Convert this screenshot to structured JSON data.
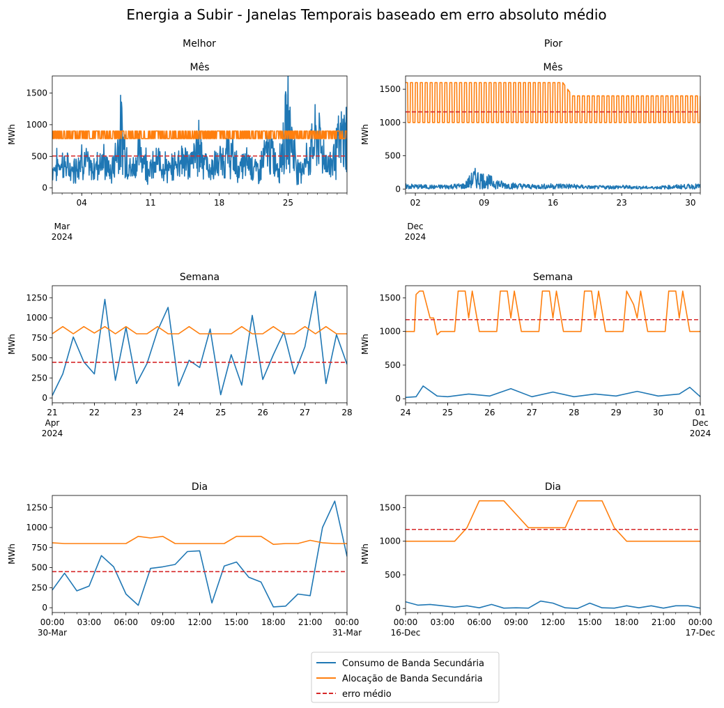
{
  "figure": {
    "title": "Energia a Subir - Janelas Temporais baseado em erro absoluto médio",
    "columns": [
      "Melhor",
      "Pior"
    ]
  },
  "legend": {
    "placement": "bottom-center",
    "items": [
      {
        "label": "Consumo de Banda Secundária",
        "color": "#1f77b4",
        "style": "solid"
      },
      {
        "label": "Alocação de Banda Secundária",
        "color": "#ff7f0e",
        "style": "solid"
      },
      {
        "label": "erro médio",
        "color": "#d62728",
        "style": "dashed"
      }
    ]
  },
  "chart_data": [
    {
      "type": "line",
      "panel": "Melhor",
      "title": "Mês",
      "ylabel": "MWh",
      "xlabel": "",
      "ylim": [
        -80,
        1770
      ],
      "yticks": [
        0,
        500,
        1000,
        1500
      ],
      "grid": false,
      "x_range": [
        "2024-03-01",
        "2024-03-31"
      ],
      "xticks": [
        "04",
        "11",
        "18",
        "25"
      ],
      "xtick_sub": [
        "Mar",
        "2024"
      ],
      "series": [
        {
          "name": "Consumo de Banda Secundária",
          "color": "#1f77b4",
          "x": [
            "2024-03-01",
            "2024-03-02",
            "2024-03-03",
            "2024-03-04",
            "2024-03-05",
            "2024-03-06",
            "2024-03-07",
            "2024-03-08",
            "2024-03-09",
            "2024-03-10",
            "2024-03-11",
            "2024-03-12",
            "2024-03-13",
            "2024-03-14",
            "2024-03-15",
            "2024-03-16",
            "2024-03-17",
            "2024-03-18",
            "2024-03-19",
            "2024-03-20",
            "2024-03-21",
            "2024-03-22",
            "2024-03-23",
            "2024-03-24",
            "2024-03-25",
            "2024-03-26",
            "2024-03-27",
            "2024-03-28",
            "2024-03-29",
            "2024-03-30",
            "2024-03-31"
          ],
          "values": [
            320,
            510,
            230,
            700,
            260,
            610,
            180,
            1340,
            240,
            820,
            300,
            560,
            220,
            690,
            410,
            970,
            260,
            480,
            780,
            300,
            520,
            240,
            880,
            360,
            1680,
            280,
            590,
            1260,
            360,
            900,
            1320
          ]
        },
        {
          "name": "Alocação de Banda Secundária",
          "color": "#ff7f0e",
          "x": [
            "2024-03-01",
            "2024-03-31"
          ],
          "values": [
            810,
            810
          ],
          "band": [
            780,
            900
          ]
        }
      ],
      "erro_medio": 505
    },
    {
      "type": "line",
      "panel": "Pior",
      "title": "Mês",
      "ylabel": "MWh",
      "xlabel": "",
      "ylim": [
        -60,
        1700
      ],
      "yticks": [
        0,
        500,
        1000,
        1500
      ],
      "grid": false,
      "x_range": [
        "2024-12-01",
        "2024-12-31"
      ],
      "xticks": [
        "02",
        "09",
        "16",
        "23",
        "30"
      ],
      "xtick_sub": [
        "Dec",
        "2024"
      ],
      "series": [
        {
          "name": "Consumo de Banda Secundária",
          "color": "#1f77b4",
          "x": [
            "2024-12-01",
            "2024-12-04",
            "2024-12-07",
            "2024-12-08",
            "2024-12-11",
            "2024-12-14",
            "2024-12-17",
            "2024-12-20",
            "2024-12-23",
            "2024-12-26",
            "2024-12-29",
            "2024-12-31"
          ],
          "values": [
            80,
            60,
            90,
            320,
            110,
            70,
            90,
            50,
            60,
            40,
            70,
            80
          ]
        },
        {
          "name": "Alocação de Banda Secundária",
          "color": "#ff7f0e",
          "x": [
            "2024-12-01",
            "2024-12-17",
            "2024-12-18",
            "2024-12-31"
          ],
          "values": [
            1600,
            1600,
            1400,
            1400
          ],
          "low": 1000
        }
      ],
      "erro_medio": 1160
    },
    {
      "type": "line",
      "panel": "Melhor",
      "title": "Semana",
      "ylabel": "MWh",
      "xlabel": "",
      "ylim": [
        -60,
        1400
      ],
      "yticks": [
        0,
        250,
        500,
        750,
        1000,
        1250
      ],
      "grid": false,
      "x_range": [
        "2024-04-21",
        "2024-04-28"
      ],
      "xticks": [
        "21",
        "22",
        "23",
        "24",
        "25",
        "26",
        "27",
        "28"
      ],
      "xtick_sub": [
        "Apr",
        "2024"
      ],
      "series": [
        {
          "name": "Consumo de Banda Secundária",
          "color": "#1f77b4",
          "x": [
            "21 00:00",
            "21 06:00",
            "21 12:00",
            "21 18:00",
            "22 00:00",
            "22 06:00",
            "22 12:00",
            "22 18:00",
            "23 00:00",
            "23 06:00",
            "23 12:00",
            "23 18:00",
            "24 00:00",
            "24 06:00",
            "24 12:00",
            "24 18:00",
            "25 00:00",
            "25 06:00",
            "25 12:00",
            "25 18:00",
            "26 00:00",
            "26 06:00",
            "26 12:00",
            "26 18:00",
            "27 00:00",
            "27 06:00",
            "27 12:00",
            "27 18:00",
            "28 00:00"
          ],
          "values": [
            30,
            300,
            760,
            450,
            300,
            1230,
            220,
            880,
            180,
            430,
            840,
            1130,
            150,
            470,
            380,
            860,
            40,
            540,
            160,
            1030,
            230,
            540,
            820,
            300,
            640,
            1330,
            180,
            790,
            420
          ]
        },
        {
          "name": "Alocação de Banda Secundária",
          "color": "#ff7f0e",
          "x": [
            "21 00:00",
            "21 06:00",
            "21 12:00",
            "21 18:00",
            "22 00:00",
            "22 06:00",
            "22 12:00",
            "22 18:00",
            "23 00:00",
            "23 06:00",
            "23 12:00",
            "23 18:00",
            "24 00:00",
            "24 06:00",
            "24 12:00",
            "24 18:00",
            "25 00:00",
            "25 06:00",
            "25 12:00",
            "25 18:00",
            "26 00:00",
            "26 06:00",
            "26 12:00",
            "26 18:00",
            "27 00:00",
            "27 06:00",
            "27 12:00",
            "27 18:00",
            "28 00:00"
          ],
          "values": [
            800,
            890,
            800,
            890,
            810,
            890,
            800,
            890,
            800,
            800,
            890,
            800,
            800,
            890,
            800,
            800,
            800,
            800,
            890,
            800,
            800,
            890,
            800,
            800,
            890,
            800,
            890,
            800,
            800
          ]
        }
      ],
      "erro_medio": 445
    },
    {
      "type": "line",
      "panel": "Pior",
      "title": "Semana",
      "ylabel": "MWh",
      "xlabel": "",
      "ylim": [
        -60,
        1680
      ],
      "yticks": [
        0,
        500,
        1000,
        1500
      ],
      "grid": false,
      "x_range": [
        "2024-11-24",
        "2024-12-01"
      ],
      "xticks": [
        "24",
        "25",
        "26",
        "27",
        "28",
        "29",
        "30",
        "01"
      ],
      "xtick_sub_last": [
        "Dec",
        "2024"
      ],
      "series": [
        {
          "name": "Consumo de Banda Secundária",
          "color": "#1f77b4",
          "x": [
            "24 00:00",
            "24 06:00",
            "24 10:00",
            "24 18:00",
            "25 00:00",
            "25 12:00",
            "26 00:00",
            "26 12:00",
            "27 00:00",
            "27 12:00",
            "28 00:00",
            "28 12:00",
            "29 00:00",
            "29 12:00",
            "30 00:00",
            "30 12:00",
            "30 18:00",
            "01 00:00"
          ],
          "values": [
            20,
            30,
            190,
            40,
            30,
            70,
            40,
            150,
            30,
            100,
            30,
            70,
            40,
            110,
            40,
            70,
            170,
            30
          ]
        },
        {
          "name": "Alocação de Banda Secundária",
          "color": "#ff7f0e",
          "x": [
            "24 00:00",
            "24 05:00",
            "24 06:00",
            "24 08:00",
            "24 10:00",
            "24 14:00",
            "24 16:00",
            "24 18:00",
            "24 20:00",
            "25 00:00",
            "25 04:00",
            "25 06:00",
            "25 10:00",
            "25 12:00",
            "25 14:00",
            "25 18:00",
            "26 00:00",
            "26 04:00",
            "26 06:00",
            "26 10:00",
            "26 12:00",
            "26 14:00",
            "26 18:00",
            "27 00:00",
            "27 04:00",
            "27 06:00",
            "27 10:00",
            "27 12:00",
            "27 14:00",
            "27 18:00",
            "28 00:00",
            "28 04:00",
            "28 06:00",
            "28 10:00",
            "28 12:00",
            "28 14:00",
            "28 18:00",
            "29 00:00",
            "29 04:00",
            "29 06:00",
            "29 10:00",
            "29 12:00",
            "29 14:00",
            "29 18:00",
            "30 00:00",
            "30 04:00",
            "30 06:00",
            "30 10:00",
            "30 12:00",
            "30 14:00",
            "30 18:00",
            "01 00:00"
          ],
          "values": [
            1000,
            1000,
            1550,
            1600,
            1600,
            1200,
            1200,
            950,
            1000,
            1000,
            1000,
            1600,
            1600,
            1200,
            1600,
            1000,
            1000,
            1000,
            1600,
            1600,
            1200,
            1600,
            1000,
            1000,
            1000,
            1600,
            1600,
            1200,
            1600,
            1000,
            1000,
            1000,
            1600,
            1600,
            1200,
            1600,
            1000,
            1000,
            1000,
            1600,
            1400,
            1200,
            1600,
            1000,
            1000,
            1000,
            1600,
            1600,
            1200,
            1600,
            1000,
            1000
          ]
        }
      ],
      "erro_medio": 1175
    },
    {
      "type": "line",
      "panel": "Melhor",
      "title": "Dia",
      "ylabel": "MWh",
      "xlabel": "",
      "ylim": [
        -60,
        1400
      ],
      "yticks": [
        0,
        250,
        500,
        750,
        1000,
        1250
      ],
      "grid": false,
      "x_range": [
        "00:00",
        "24:00"
      ],
      "xticks": [
        "00:00",
        "03:00",
        "06:00",
        "09:00",
        "12:00",
        "15:00",
        "18:00",
        "21:00",
        "00:00"
      ],
      "xtick_sub_first": "30-Mar",
      "xtick_sub_last": "31-Mar",
      "series": [
        {
          "name": "Consumo de Banda Secundária",
          "color": "#1f77b4",
          "x": [
            0,
            1,
            2,
            3,
            4,
            5,
            6,
            7,
            8,
            9,
            10,
            11,
            12,
            13,
            14,
            15,
            16,
            17,
            18,
            19,
            20,
            21,
            22,
            23,
            24
          ],
          "values": [
            220,
            430,
            210,
            270,
            650,
            510,
            170,
            30,
            490,
            510,
            540,
            700,
            710,
            60,
            520,
            570,
            380,
            320,
            10,
            20,
            170,
            150,
            1000,
            1330,
            640
          ]
        },
        {
          "name": "Alocação de Banda Secundária",
          "color": "#ff7f0e",
          "x": [
            0,
            1,
            2,
            3,
            4,
            5,
            6,
            7,
            8,
            9,
            10,
            11,
            12,
            13,
            14,
            15,
            16,
            17,
            18,
            19,
            20,
            21,
            22,
            23,
            24
          ],
          "values": [
            810,
            800,
            800,
            800,
            800,
            800,
            800,
            890,
            870,
            890,
            800,
            800,
            800,
            800,
            800,
            890,
            890,
            890,
            790,
            800,
            800,
            840,
            810,
            800,
            800
          ]
        }
      ],
      "erro_medio": 450
    },
    {
      "type": "line",
      "panel": "Pior",
      "title": "Dia",
      "ylabel": "MWh",
      "xlabel": "",
      "ylim": [
        -60,
        1680
      ],
      "yticks": [
        0,
        500,
        1000,
        1500
      ],
      "grid": false,
      "x_range": [
        "00:00",
        "24:00"
      ],
      "xticks": [
        "00:00",
        "03:00",
        "06:00",
        "09:00",
        "12:00",
        "15:00",
        "18:00",
        "21:00",
        "00:00"
      ],
      "xtick_sub_first": "16-Dec",
      "xtick_sub_last": "17-Dec",
      "series": [
        {
          "name": "Consumo de Banda Secundária",
          "color": "#1f77b4",
          "x": [
            0,
            1,
            2,
            3,
            4,
            5,
            6,
            7,
            8,
            9,
            10,
            11,
            12,
            13,
            14,
            15,
            16,
            17,
            18,
            19,
            20,
            21,
            22,
            23,
            24
          ],
          "values": [
            100,
            50,
            60,
            40,
            20,
            40,
            10,
            60,
            5,
            10,
            5,
            110,
            80,
            10,
            0,
            80,
            10,
            5,
            40,
            10,
            40,
            5,
            40,
            40,
            5
          ]
        },
        {
          "name": "Alocação de Banda Secundária",
          "color": "#ff7f0e",
          "x": [
            0,
            1,
            2,
            3,
            4,
            5,
            6,
            7,
            8,
            9,
            10,
            11,
            12,
            13,
            14,
            15,
            16,
            17,
            18,
            19,
            20,
            21,
            22,
            23,
            24
          ],
          "values": [
            1000,
            1000,
            1000,
            1000,
            1000,
            1200,
            1600,
            1600,
            1600,
            1400,
            1200,
            1200,
            1200,
            1200,
            1600,
            1600,
            1600,
            1200,
            1000,
            1000,
            1000,
            1000,
            1000,
            1000,
            1000
          ]
        }
      ],
      "erro_medio": 1175
    }
  ]
}
